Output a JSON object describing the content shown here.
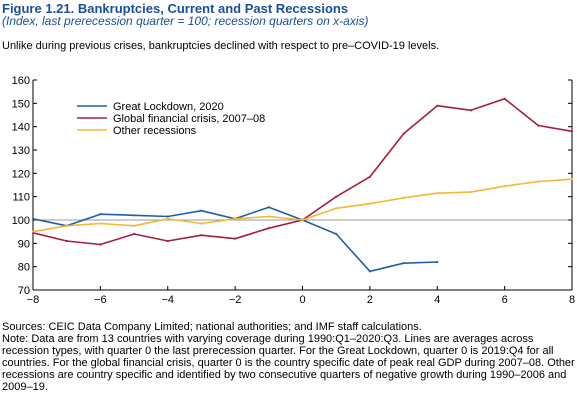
{
  "figure": {
    "title": "Figure 1.21.  Bankruptcies, Current and Past Recessions",
    "subtitle": "(Index, last prerecession quarter = 100; recession quarters on x-axis)",
    "caption": "Unlike during previous crises, bankruptcies declined with respect to pre–COVID-19 levels."
  },
  "notes": {
    "sources": "Sources: CEIC Data Company Limited; national authorities; and IMF staff calculations.",
    "note": "Note: Data are from 13 countries with varying coverage during 1990:Q1–2020:Q3. Lines are averages across recession types, with quarter 0 the last prerecession quarter. For the Great Lockdown, quarter 0 is 2019:Q4 for all countries. For the global financial crisis, quarter 0 is the country specific date of peak real GDP during 2007–08. Other recessions are country specific and identified by two consecutive quarters of negative growth during 1990–2006 and 2009–19."
  },
  "chart_data": {
    "type": "line",
    "title": "",
    "xlabel": "",
    "ylabel": "",
    "xlim": [
      -8,
      8
    ],
    "ylim": [
      70,
      160
    ],
    "x_ticks": [
      -8,
      -6,
      -4,
      -2,
      0,
      2,
      4,
      6,
      8
    ],
    "x_tick_labels": [
      "−8",
      "−6",
      "−4",
      "−2",
      "0",
      "2",
      "4",
      "6",
      "8"
    ],
    "y_ticks": [
      70,
      80,
      90,
      100,
      110,
      120,
      130,
      140,
      150,
      160
    ],
    "y_tick_labels": [
      "70",
      "80",
      "90",
      "100",
      "110",
      "120",
      "130",
      "140",
      "150",
      "160"
    ],
    "reference_line": 100,
    "grid": false,
    "legend_position": "top-left",
    "series": [
      {
        "name": "Great Lockdown, 2020",
        "color": "#1f5fa8",
        "x": [
          -8,
          -7,
          -6,
          -5,
          -4,
          -3,
          -2,
          -1,
          0,
          1,
          2,
          3,
          4
        ],
        "y": [
          100.5,
          97.5,
          102.5,
          102,
          101.5,
          104,
          100.5,
          105.5,
          100,
          94,
          78,
          81.5,
          82
        ]
      },
      {
        "name": "Global financial crisis, 2007–08",
        "color": "#a3203b",
        "x": [
          -8,
          -7,
          -6,
          -5,
          -4,
          -3,
          -2,
          -1,
          0,
          1,
          2,
          3,
          4,
          5,
          6,
          7,
          8
        ],
        "y": [
          94.5,
          91,
          89.5,
          94,
          91,
          93.5,
          92,
          96.5,
          100,
          110,
          118.5,
          137,
          149,
          147,
          152,
          140.5,
          138
        ]
      },
      {
        "name": "Other recessions",
        "color": "#f5b731",
        "x": [
          -8,
          -7,
          -6,
          -5,
          -4,
          -3,
          -2,
          -1,
          0,
          1,
          2,
          3,
          4,
          5,
          6,
          7,
          8
        ],
        "y": [
          95,
          97.5,
          98.5,
          97.5,
          100.5,
          98.5,
          100.5,
          101.5,
          100,
          105,
          107,
          109.5,
          111.5,
          112,
          114.5,
          116.5,
          117.5
        ]
      }
    ]
  }
}
